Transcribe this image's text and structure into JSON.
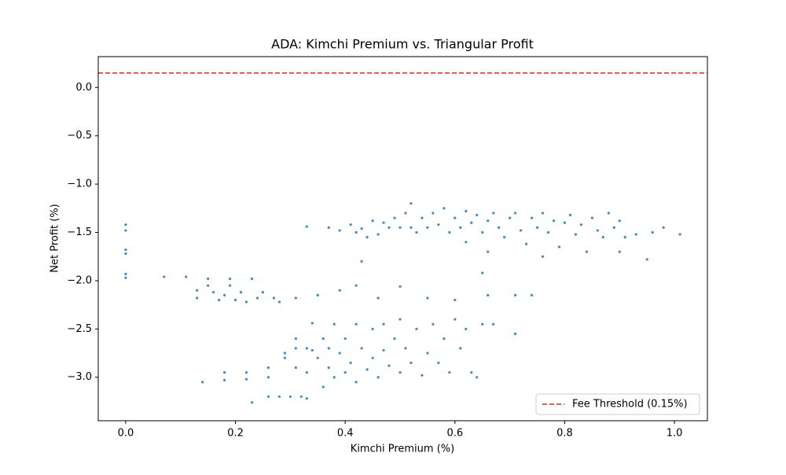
{
  "chart_data": {
    "type": "scatter",
    "title": "ADA: Kimchi Premium vs. Triangular Profit",
    "xlabel": "Kimchi Premium (%)",
    "ylabel": "Net Profit (%)",
    "color": "#1f77b4",
    "x": [
      0,
      0,
      0,
      0,
      0,
      0,
      0.07,
      0.11,
      0.13,
      0.13,
      0.15,
      0.15,
      0.16,
      0.17,
      0.18,
      0.19,
      0.19,
      0.2,
      0.21,
      0.22,
      0.23,
      0.24,
      0.25,
      0.27,
      0.28,
      0.31,
      0.35,
      0.39,
      0.42,
      0.46,
      0.5,
      0.55,
      0.6,
      0.66,
      0.71,
      0.74,
      0.14,
      0.18,
      0.18,
      0.22,
      0.22,
      0.23,
      0.26,
      0.26,
      0.26,
      0.28,
      0.29,
      0.29,
      0.3,
      0.31,
      0.31,
      0.31,
      0.32,
      0.33,
      0.33,
      0.33,
      0.34,
      0.34,
      0.35,
      0.36,
      0.36,
      0.37,
      0.37,
      0.38,
      0.38,
      0.39,
      0.4,
      0.4,
      0.41,
      0.42,
      0.42,
      0.43,
      0.44,
      0.45,
      0.45,
      0.46,
      0.47,
      0.47,
      0.48,
      0.49,
      0.5,
      0.5,
      0.51,
      0.52,
      0.53,
      0.54,
      0.55,
      0.56,
      0.57,
      0.58,
      0.59,
      0.6,
      0.61,
      0.62,
      0.63,
      0.64,
      0.65,
      0.67,
      0.71,
      0.33,
      0.37,
      0.39,
      0.41,
      0.42,
      0.43,
      0.44,
      0.45,
      0.46,
      0.47,
      0.48,
      0.49,
      0.5,
      0.51,
      0.52,
      0.52,
      0.53,
      0.54,
      0.55,
      0.56,
      0.57,
      0.58,
      0.59,
      0.6,
      0.61,
      0.62,
      0.62,
      0.63,
      0.64,
      0.65,
      0.66,
      0.67,
      0.68,
      0.69,
      0.7,
      0.71,
      0.72,
      0.73,
      0.74,
      0.75,
      0.76,
      0.77,
      0.78,
      0.79,
      0.8,
      0.81,
      0.82,
      0.83,
      0.84,
      0.85,
      0.86,
      0.87,
      0.88,
      0.89,
      0.9,
      0.9,
      0.91,
      0.93,
      0.95,
      0.96,
      0.98,
      1.01,
      0.76,
      0.66,
      0.43,
      0.65
    ],
    "y": [
      -1.42,
      -1.48,
      -1.68,
      -1.72,
      -1.93,
      -1.97,
      -1.96,
      -1.96,
      -2.1,
      -2.18,
      -1.98,
      -2.05,
      -2.12,
      -2.2,
      -2.15,
      -1.98,
      -2.05,
      -2.2,
      -2.12,
      -2.22,
      -1.98,
      -2.18,
      -2.12,
      -2.18,
      -2.22,
      -2.18,
      -2.15,
      -2.1,
      -2.05,
      -2.18,
      -2.06,
      -2.18,
      -2.2,
      -2.15,
      -2.15,
      -2.15,
      -3.05,
      -2.95,
      -3.03,
      -2.95,
      -3.02,
      -3.26,
      -2.9,
      -3.0,
      -3.2,
      -3.2,
      -2.75,
      -2.8,
      -3.2,
      -2.6,
      -2.7,
      -2.9,
      -3.2,
      -2.7,
      -2.95,
      -3.22,
      -2.44,
      -2.72,
      -2.8,
      -2.6,
      -3.1,
      -2.7,
      -2.9,
      -2.45,
      -3.0,
      -2.75,
      -2.6,
      -2.95,
      -2.85,
      -2.45,
      -3.05,
      -2.7,
      -2.92,
      -2.5,
      -2.8,
      -3.0,
      -2.45,
      -2.72,
      -2.88,
      -2.6,
      -2.4,
      -2.95,
      -2.7,
      -2.85,
      -2.5,
      -2.98,
      -2.75,
      -2.45,
      -2.85,
      -2.6,
      -2.95,
      -2.4,
      -2.7,
      -2.5,
      -2.95,
      -3.0,
      -2.45,
      -2.45,
      -2.55,
      -1.44,
      -1.45,
      -1.48,
      -1.42,
      -1.5,
      -1.46,
      -1.55,
      -1.38,
      -1.52,
      -1.4,
      -1.45,
      -1.35,
      -1.45,
      -1.3,
      -1.2,
      -1.45,
      -1.5,
      -1.35,
      -1.45,
      -1.3,
      -1.42,
      -1.25,
      -1.5,
      -1.35,
      -1.45,
      -1.28,
      -1.6,
      -1.4,
      -1.32,
      -1.5,
      -1.38,
      -1.3,
      -1.45,
      -1.55,
      -1.35,
      -1.3,
      -1.48,
      -1.62,
      -1.35,
      -1.45,
      -1.3,
      -1.5,
      -1.38,
      -1.65,
      -1.4,
      -1.32,
      -1.52,
      -1.42,
      -1.7,
      -1.35,
      -1.48,
      -1.55,
      -1.3,
      -1.45,
      -1.38,
      -1.7,
      -1.55,
      -1.52,
      -1.78,
      -1.5,
      -1.45,
      -1.52,
      -1.75,
      -1.7,
      -1.8,
      -1.92
    ],
    "xlim": [
      -0.05,
      1.06
    ],
    "ylim": [
      -3.45,
      0.32
    ],
    "xticks": [
      {
        "value": 0,
        "label": "0.0"
      },
      {
        "value": 0.2,
        "label": "0.2"
      },
      {
        "value": 0.4,
        "label": "0.4"
      },
      {
        "value": 0.6,
        "label": "0.6"
      },
      {
        "value": 0.8,
        "label": "0.8"
      },
      {
        "value": 1,
        "label": "1.0"
      }
    ],
    "yticks": [
      {
        "value": 0,
        "label": "0.0"
      },
      {
        "value": -0.5,
        "label": "−0.5"
      },
      {
        "value": -1,
        "label": "−1.0"
      },
      {
        "value": -1.5,
        "label": "−1.5"
      },
      {
        "value": -2,
        "label": "−2.0"
      },
      {
        "value": -2.5,
        "label": "−2.5"
      },
      {
        "value": -3,
        "label": "−3.0"
      }
    ],
    "threshold": {
      "value": 0.15,
      "label": "Fee Threshold (0.15%)",
      "color": "#d62728"
    },
    "legend": "lower right"
  }
}
